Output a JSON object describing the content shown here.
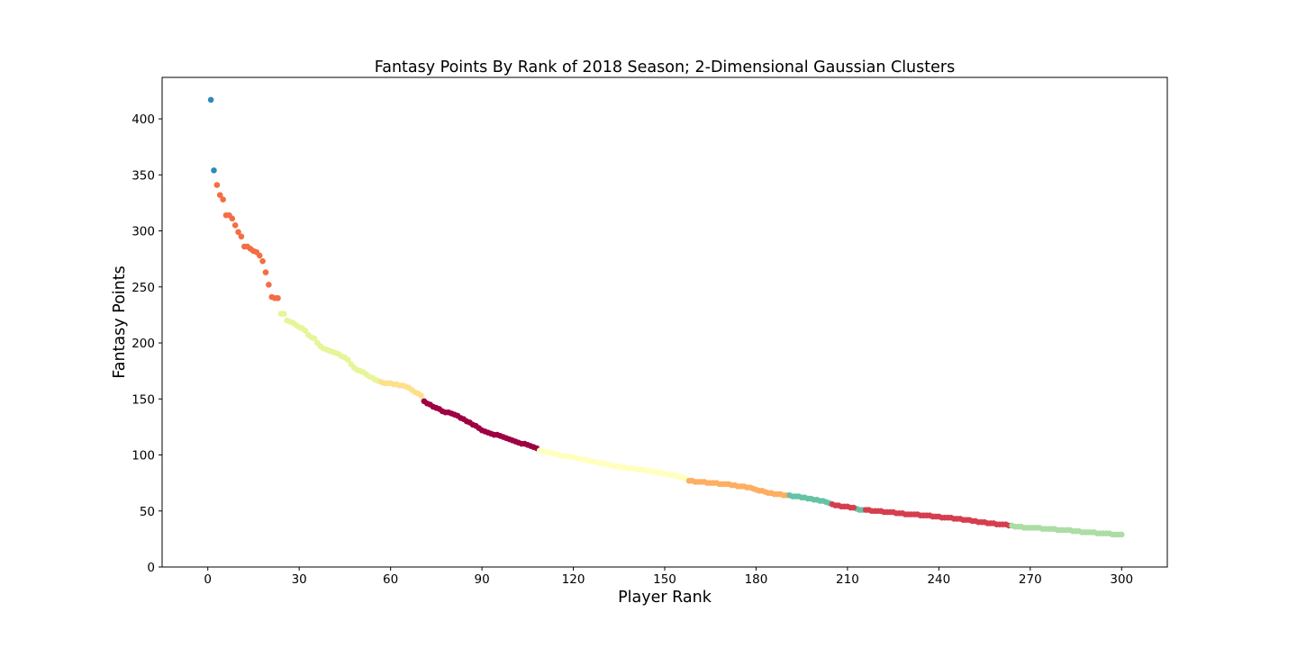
{
  "chart_data": {
    "type": "scatter",
    "title": "Fantasy Points By Rank of 2018 Season; 2-Dimensional Gaussian Clusters",
    "xlabel": "Player Rank",
    "ylabel": "Fantasy Points",
    "xlim": [
      -15,
      315
    ],
    "ylim": [
      0,
      437
    ],
    "xticks": [
      0,
      30,
      60,
      90,
      120,
      150,
      180,
      210,
      240,
      270,
      300
    ],
    "yticks": [
      0,
      50,
      100,
      150,
      200,
      250,
      300,
      350,
      400
    ],
    "grid": false,
    "clusters": [
      {
        "color": "#3288bd",
        "points": [
          [
            1,
            417
          ],
          [
            2,
            354
          ]
        ]
      },
      {
        "color": "#f46d43",
        "points": [
          [
            3,
            341
          ],
          [
            4,
            332
          ],
          [
            5,
            328
          ],
          [
            6,
            314
          ],
          [
            7,
            314
          ],
          [
            8,
            311
          ],
          [
            9,
            305
          ],
          [
            10,
            299
          ],
          [
            11,
            295
          ],
          [
            12,
            286
          ],
          [
            13,
            286
          ],
          [
            14,
            284
          ],
          [
            15,
            282
          ],
          [
            16,
            281
          ],
          [
            17,
            278
          ],
          [
            18,
            273
          ],
          [
            19,
            263
          ],
          [
            20,
            252
          ],
          [
            21,
            241
          ],
          [
            22,
            240
          ],
          [
            23,
            240
          ]
        ]
      },
      {
        "color": "#e6f598",
        "points": [
          [
            24,
            226
          ],
          [
            25,
            226
          ],
          [
            26,
            220
          ],
          [
            27,
            219
          ],
          [
            28,
            218
          ],
          [
            29,
            216
          ],
          [
            30,
            214
          ],
          [
            31,
            213
          ],
          [
            32,
            211
          ],
          [
            33,
            207
          ],
          [
            34,
            205
          ],
          [
            35,
            204
          ],
          [
            36,
            200
          ],
          [
            37,
            197
          ],
          [
            38,
            195
          ],
          [
            39,
            194
          ],
          [
            40,
            193
          ],
          [
            41,
            192
          ],
          [
            42,
            191
          ],
          [
            43,
            190
          ],
          [
            44,
            188
          ],
          [
            45,
            187
          ],
          [
            46,
            185
          ],
          [
            47,
            181
          ],
          [
            48,
            178
          ],
          [
            49,
            176
          ],
          [
            50,
            175
          ],
          [
            51,
            174
          ],
          [
            52,
            172
          ],
          [
            53,
            170
          ],
          [
            54,
            169
          ],
          [
            55,
            167
          ],
          [
            56,
            166
          ]
        ]
      },
      {
        "color": "#fee08b",
        "points": [
          [
            57,
            165
          ],
          [
            58,
            164
          ],
          [
            59,
            164
          ],
          [
            60,
            164
          ],
          [
            61,
            163
          ],
          [
            62,
            163
          ],
          [
            63,
            162
          ],
          [
            64,
            162
          ],
          [
            65,
            161
          ],
          [
            66,
            160
          ],
          [
            67,
            158
          ],
          [
            68,
            156
          ],
          [
            69,
            155
          ],
          [
            70,
            153
          ]
        ]
      },
      {
        "color": "#9e0142",
        "points": [
          [
            71,
            148
          ],
          [
            72,
            146
          ],
          [
            73,
            145
          ],
          [
            74,
            143
          ],
          [
            75,
            142
          ],
          [
            76,
            141
          ],
          [
            77,
            139
          ],
          [
            78,
            138
          ],
          [
            79,
            138
          ],
          [
            80,
            137
          ],
          [
            81,
            136
          ],
          [
            82,
            135
          ],
          [
            83,
            133
          ],
          [
            84,
            132
          ],
          [
            85,
            130
          ],
          [
            86,
            129
          ],
          [
            87,
            127
          ],
          [
            88,
            126
          ],
          [
            89,
            124
          ],
          [
            90,
            122
          ],
          [
            91,
            121
          ],
          [
            92,
            120
          ],
          [
            93,
            119
          ],
          [
            94,
            118
          ],
          [
            95,
            118
          ],
          [
            96,
            117
          ],
          [
            97,
            116
          ],
          [
            98,
            115
          ],
          [
            99,
            114
          ],
          [
            100,
            113
          ],
          [
            101,
            112
          ],
          [
            102,
            111
          ],
          [
            103,
            110
          ],
          [
            104,
            110
          ],
          [
            105,
            109
          ],
          [
            106,
            108
          ],
          [
            107,
            107
          ],
          [
            108,
            106
          ]
        ]
      },
      {
        "color": "#ffffbf",
        "points": [
          [
            109,
            104
          ],
          [
            110,
            103
          ],
          [
            111,
            103
          ],
          [
            112,
            102
          ],
          [
            113,
            102
          ],
          [
            114,
            101
          ],
          [
            115,
            100
          ],
          [
            116,
            99
          ],
          [
            117,
            99
          ],
          [
            118,
            99
          ],
          [
            119,
            98
          ],
          [
            120,
            98
          ],
          [
            121,
            97
          ],
          [
            122,
            97
          ],
          [
            123,
            96
          ],
          [
            124,
            96
          ],
          [
            125,
            95
          ],
          [
            126,
            94
          ],
          [
            127,
            94
          ],
          [
            128,
            93
          ],
          [
            129,
            93
          ],
          [
            130,
            92
          ],
          [
            131,
            92
          ],
          [
            132,
            91
          ],
          [
            133,
            90
          ],
          [
            134,
            90
          ],
          [
            135,
            90
          ],
          [
            136,
            89
          ],
          [
            137,
            89
          ],
          [
            138,
            88
          ],
          [
            139,
            88
          ],
          [
            140,
            88
          ],
          [
            141,
            87
          ],
          [
            142,
            87
          ],
          [
            143,
            87
          ],
          [
            144,
            86
          ],
          [
            145,
            86
          ],
          [
            146,
            85
          ],
          [
            147,
            85
          ],
          [
            148,
            84
          ],
          [
            149,
            84
          ],
          [
            150,
            83
          ],
          [
            151,
            83
          ],
          [
            152,
            82
          ],
          [
            153,
            82
          ],
          [
            154,
            81
          ],
          [
            155,
            80
          ],
          [
            156,
            80
          ],
          [
            157,
            79
          ]
        ]
      },
      {
        "color": "#fdae61",
        "points": [
          [
            158,
            77
          ],
          [
            159,
            77
          ],
          [
            160,
            76
          ],
          [
            161,
            76
          ],
          [
            162,
            76
          ],
          [
            163,
            76
          ],
          [
            164,
            75
          ],
          [
            165,
            75
          ],
          [
            166,
            75
          ],
          [
            167,
            75
          ],
          [
            168,
            74
          ],
          [
            169,
            74
          ],
          [
            170,
            74
          ],
          [
            171,
            74
          ],
          [
            172,
            73
          ],
          [
            173,
            73
          ],
          [
            174,
            72
          ],
          [
            175,
            72
          ],
          [
            176,
            72
          ],
          [
            177,
            71
          ],
          [
            178,
            71
          ],
          [
            179,
            70
          ],
          [
            180,
            69
          ],
          [
            181,
            68
          ],
          [
            182,
            68
          ],
          [
            183,
            67
          ],
          [
            184,
            66
          ],
          [
            185,
            66
          ],
          [
            186,
            65
          ],
          [
            187,
            65
          ],
          [
            188,
            65
          ],
          [
            189,
            64
          ],
          [
            190,
            64
          ]
        ]
      },
      {
        "color": "#66c2a5",
        "points": [
          [
            191,
            64
          ],
          [
            192,
            63
          ],
          [
            193,
            63
          ],
          [
            194,
            63
          ],
          [
            195,
            62
          ],
          [
            196,
            62
          ],
          [
            197,
            61
          ],
          [
            198,
            61
          ],
          [
            199,
            60
          ],
          [
            200,
            60
          ],
          [
            201,
            59
          ],
          [
            202,
            59
          ],
          [
            203,
            58
          ],
          [
            204,
            57
          ],
          [
            213,
            52
          ],
          [
            214,
            51
          ],
          [
            215,
            51
          ]
        ]
      },
      {
        "color": "#d53e4f",
        "points": [
          [
            205,
            56
          ],
          [
            206,
            55
          ],
          [
            207,
            55
          ],
          [
            208,
            54
          ],
          [
            209,
            54
          ],
          [
            210,
            54
          ],
          [
            211,
            53
          ],
          [
            212,
            53
          ],
          [
            216,
            51
          ],
          [
            217,
            51
          ],
          [
            218,
            50
          ],
          [
            219,
            50
          ],
          [
            220,
            50
          ],
          [
            221,
            50
          ],
          [
            222,
            49
          ],
          [
            223,
            49
          ],
          [
            224,
            49
          ],
          [
            225,
            49
          ],
          [
            226,
            48
          ],
          [
            227,
            48
          ],
          [
            228,
            48
          ],
          [
            229,
            47
          ],
          [
            230,
            47
          ],
          [
            231,
            47
          ],
          [
            232,
            47
          ],
          [
            233,
            47
          ],
          [
            234,
            46
          ],
          [
            235,
            46
          ],
          [
            236,
            46
          ],
          [
            237,
            46
          ],
          [
            238,
            45
          ],
          [
            239,
            45
          ],
          [
            240,
            45
          ],
          [
            241,
            44
          ],
          [
            242,
            44
          ],
          [
            243,
            44
          ],
          [
            244,
            44
          ],
          [
            245,
            43
          ],
          [
            246,
            43
          ],
          [
            247,
            43
          ],
          [
            248,
            42
          ],
          [
            249,
            42
          ],
          [
            250,
            42
          ],
          [
            251,
            41
          ],
          [
            252,
            41
          ],
          [
            253,
            40
          ],
          [
            254,
            40
          ],
          [
            255,
            40
          ],
          [
            256,
            39
          ],
          [
            257,
            39
          ],
          [
            258,
            39
          ],
          [
            259,
            38
          ],
          [
            260,
            38
          ],
          [
            261,
            38
          ],
          [
            262,
            38
          ],
          [
            263,
            37
          ]
        ]
      },
      {
        "color": "#abdda4",
        "points": [
          [
            264,
            37
          ],
          [
            265,
            36
          ],
          [
            266,
            36
          ],
          [
            267,
            36
          ],
          [
            268,
            35
          ],
          [
            269,
            35
          ],
          [
            270,
            35
          ],
          [
            271,
            35
          ],
          [
            272,
            35
          ],
          [
            273,
            35
          ],
          [
            274,
            34
          ],
          [
            275,
            34
          ],
          [
            276,
            34
          ],
          [
            277,
            34
          ],
          [
            278,
            34
          ],
          [
            279,
            33
          ],
          [
            280,
            33
          ],
          [
            281,
            33
          ],
          [
            282,
            33
          ],
          [
            283,
            33
          ],
          [
            284,
            32
          ],
          [
            285,
            32
          ],
          [
            286,
            32
          ],
          [
            287,
            31
          ],
          [
            288,
            31
          ],
          [
            289,
            31
          ],
          [
            290,
            31
          ],
          [
            291,
            31
          ],
          [
            292,
            30
          ],
          [
            293,
            30
          ],
          [
            294,
            30
          ],
          [
            295,
            30
          ],
          [
            296,
            30
          ],
          [
            297,
            29
          ],
          [
            298,
            29
          ],
          [
            299,
            29
          ],
          [
            300,
            29
          ]
        ]
      }
    ]
  }
}
